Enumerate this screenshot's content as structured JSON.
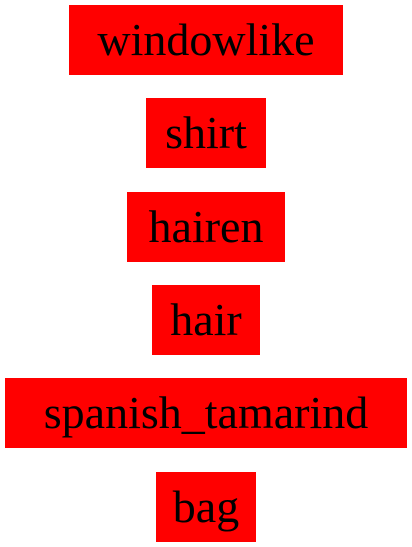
{
  "words": [
    "windowlike",
    "shirt",
    "hairen",
    "hair",
    "spanish_tamarind",
    "bag"
  ],
  "colors": {
    "label_background": "#ff0000",
    "label_text": "#000000",
    "page_background": "#ffffff"
  }
}
